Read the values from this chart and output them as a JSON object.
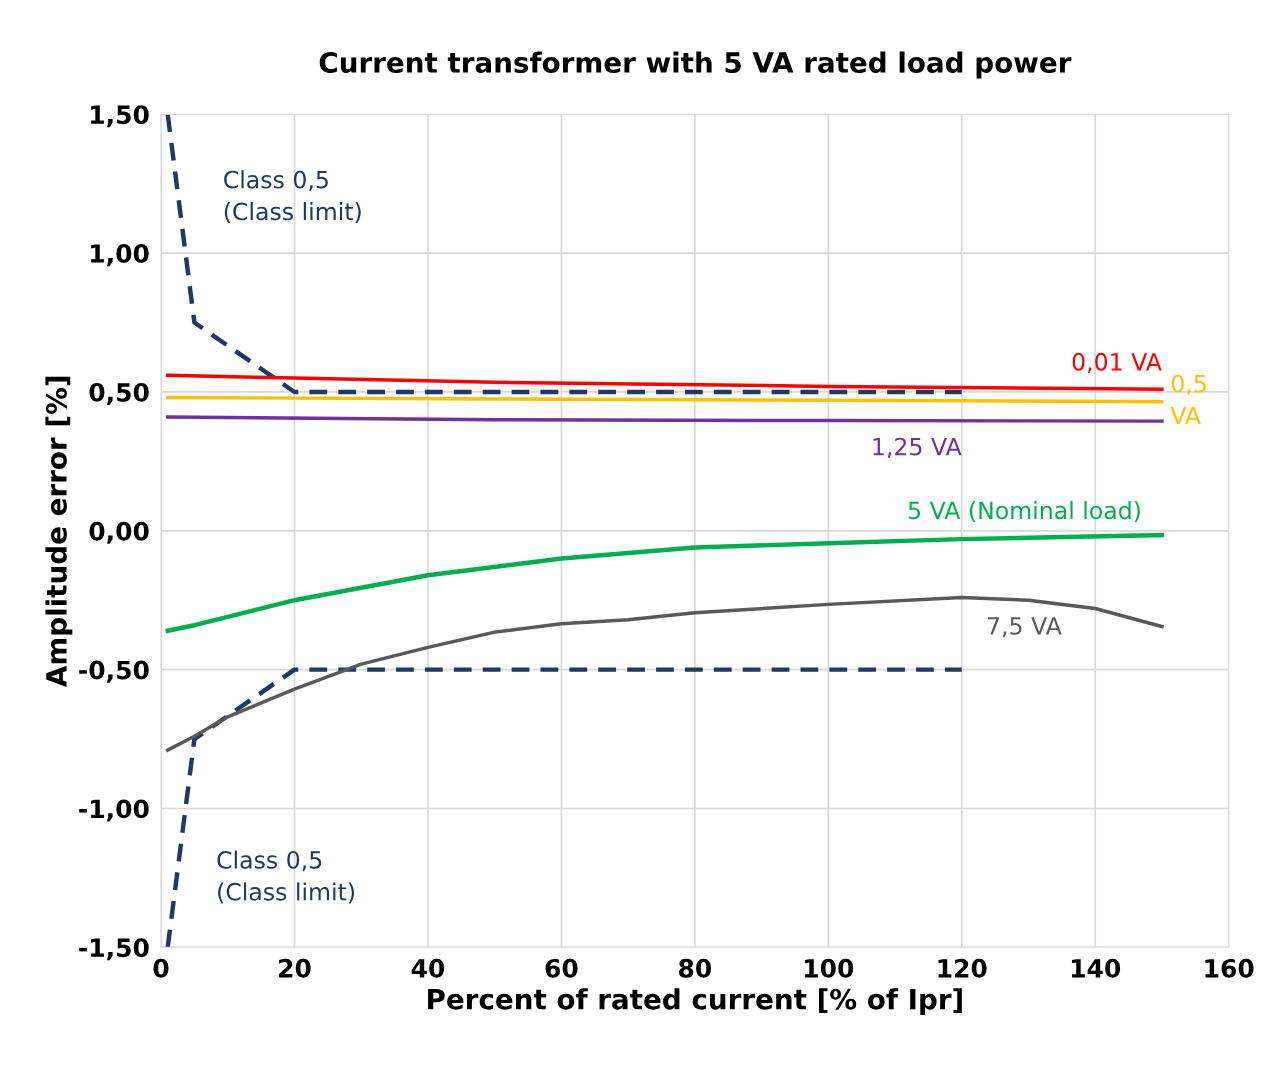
{
  "chart_data": {
    "type": "line",
    "title": "Current transformer with 5 VA rated load power",
    "xlabel": "Percent of rated current [% of Ipr]",
    "ylabel": "Amplitude error [%]",
    "xlim": [
      0,
      160
    ],
    "xticks": [
      0,
      20,
      40,
      60,
      80,
      100,
      120,
      140,
      160
    ],
    "ylim": [
      -1.5,
      1.5
    ],
    "yticks": [
      {
        "value": -1.5,
        "label": "-1,50"
      },
      {
        "value": -1.0,
        "label": "-1,00"
      },
      {
        "value": -0.5,
        "label": "-0,50"
      },
      {
        "value": 0.0,
        "label": "0,00"
      },
      {
        "value": 0.5,
        "label": "0,50"
      },
      {
        "value": 1.0,
        "label": "1,00"
      },
      {
        "value": 1.5,
        "label": "1,50"
      }
    ],
    "grid": true,
    "legend": false,
    "marker": "none",
    "series": [
      {
        "name": "Class 0,5\n(Class limit)",
        "color": "#203864",
        "line_style": "dashed",
        "x": [
          1,
          5,
          20,
          120
        ],
        "values": [
          1.5,
          0.75,
          0.5,
          0.5
        ]
      },
      {
        "name": "Class 0,5\n(Class limit)",
        "color": "#203864",
        "line_style": "dashed",
        "x": [
          1,
          5,
          20,
          120
        ],
        "values": [
          -1.5,
          -0.75,
          -0.5,
          -0.5
        ]
      },
      {
        "name": "0,01 VA",
        "color": "#ff0000",
        "line_style": "solid",
        "x": [
          1,
          20,
          50,
          100,
          150
        ],
        "values": [
          0.56,
          0.55,
          0.535,
          0.52,
          0.51
        ]
      },
      {
        "name": "0,5\nVA",
        "color": "#ffc000",
        "line_style": "solid",
        "x": [
          1,
          50,
          100,
          150
        ],
        "values": [
          0.48,
          0.475,
          0.47,
          0.465
        ]
      },
      {
        "name": "1,25 VA",
        "color": "#7030a0",
        "line_style": "solid",
        "x": [
          1,
          50,
          100,
          150
        ],
        "values": [
          0.41,
          0.4,
          0.397,
          0.395
        ]
      },
      {
        "name": "5 VA (Nominal load)",
        "color": "#00b050",
        "line_style": "solid",
        "x": [
          1,
          5,
          10,
          20,
          40,
          60,
          80,
          100,
          120,
          150
        ],
        "values": [
          -0.36,
          -0.34,
          -0.31,
          -0.25,
          -0.16,
          -0.1,
          -0.06,
          -0.045,
          -0.03,
          -0.015
        ]
      },
      {
        "name": "7,5 VA",
        "color": "#595959",
        "line_style": "solid",
        "x": [
          1,
          5,
          10,
          20,
          30,
          40,
          50,
          60,
          70,
          80,
          100,
          120,
          130,
          140,
          150
        ],
        "values": [
          -0.79,
          -0.74,
          -0.67,
          -0.57,
          -0.48,
          -0.42,
          -0.365,
          -0.335,
          -0.32,
          -0.295,
          -0.265,
          -0.24,
          -0.25,
          -0.28,
          -0.345
        ]
      }
    ]
  }
}
